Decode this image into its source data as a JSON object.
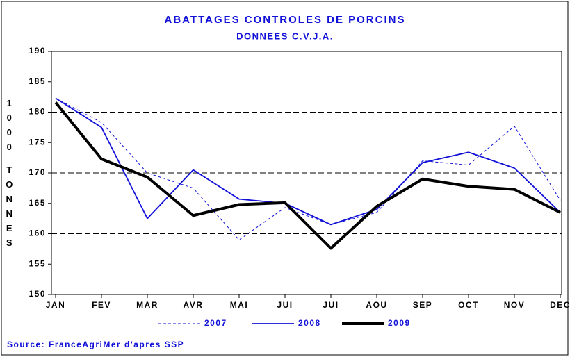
{
  "chart_data": {
    "type": "line",
    "title": "ABATTAGES CONTROLES DE PORCINS",
    "subtitle": "DONNEES C.V.J.A.",
    "y_label": "1000 TONNES",
    "source": "Source: FranceAgriMer d'apres SSP",
    "categories": [
      "JAN",
      "FEV",
      "MAR",
      "AVR",
      "MAI",
      "JUI",
      "JUI",
      "AOU",
      "SEP",
      "OCT",
      "NOV",
      "DEC"
    ],
    "series": [
      {
        "name": "2007",
        "color": "#1010d8",
        "values": [
          182.3,
          178.3,
          170,
          167.5,
          159,
          164.3,
          161.5,
          163.5,
          172,
          171.3,
          177.7,
          165.5
        ]
      },
      {
        "name": "2008",
        "color": "#1010d8",
        "values": [
          182.3,
          177.5,
          162.5,
          170.5,
          165.7,
          165,
          161.5,
          164,
          171.7,
          173.4,
          170.8,
          163.5
        ]
      },
      {
        "name": "2009",
        "color": "#000000",
        "values": [
          181.6,
          172.3,
          169.3,
          163,
          164.8,
          165.1,
          157.6,
          164.5,
          169,
          167.8,
          167.3,
          163.5
        ]
      }
    ],
    "ylim": [
      150,
      190
    ],
    "yticks": [
      150,
      155,
      160,
      165,
      170,
      175,
      180,
      185,
      190
    ],
    "grid": true
  }
}
